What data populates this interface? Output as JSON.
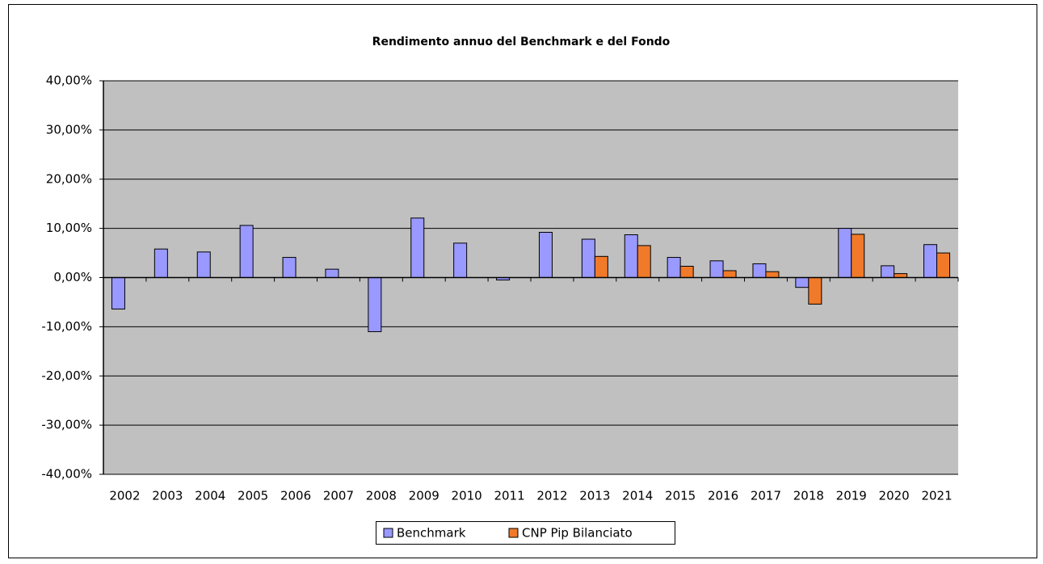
{
  "chart_data": {
    "type": "bar",
    "title": "Rendimento annuo del Benchmark e del Fondo",
    "categories": [
      "2002",
      "2003",
      "2004",
      "2005",
      "2006",
      "2007",
      "2008",
      "2009",
      "2010",
      "2011",
      "2012",
      "2013",
      "2014",
      "2015",
      "2016",
      "2017",
      "2018",
      "2019",
      "2020",
      "2021"
    ],
    "series": [
      {
        "name": "Benchmark",
        "color": "#9999ff",
        "values": [
          -6.4,
          5.8,
          5.2,
          10.6,
          4.1,
          1.7,
          -11.0,
          12.1,
          7.0,
          -0.5,
          9.2,
          7.8,
          8.7,
          4.1,
          3.4,
          2.8,
          -2.0,
          10.0,
          2.4,
          6.7
        ]
      },
      {
        "name": "CNP Pip Bilanciato",
        "color": "#f07a2a",
        "values": [
          null,
          null,
          null,
          null,
          null,
          null,
          null,
          null,
          null,
          null,
          null,
          4.3,
          6.5,
          2.3,
          1.4,
          1.2,
          -5.4,
          8.8,
          0.8,
          5.0
        ]
      }
    ],
    "ylim": [
      -40,
      40
    ],
    "yticks": [
      {
        "value": -40,
        "label": "-40,00%"
      },
      {
        "value": -30,
        "label": "-30,00%"
      },
      {
        "value": -20,
        "label": "-20,00%"
      },
      {
        "value": -10,
        "label": "-10,00%"
      },
      {
        "value": 0,
        "label": "0,00%"
      },
      {
        "value": 10,
        "label": "10,00%"
      },
      {
        "value": 20,
        "label": "20,00%"
      },
      {
        "value": 30,
        "label": "30,00%"
      },
      {
        "value": 40,
        "label": "40,00%"
      }
    ],
    "grid": true,
    "legend": "bottom"
  }
}
